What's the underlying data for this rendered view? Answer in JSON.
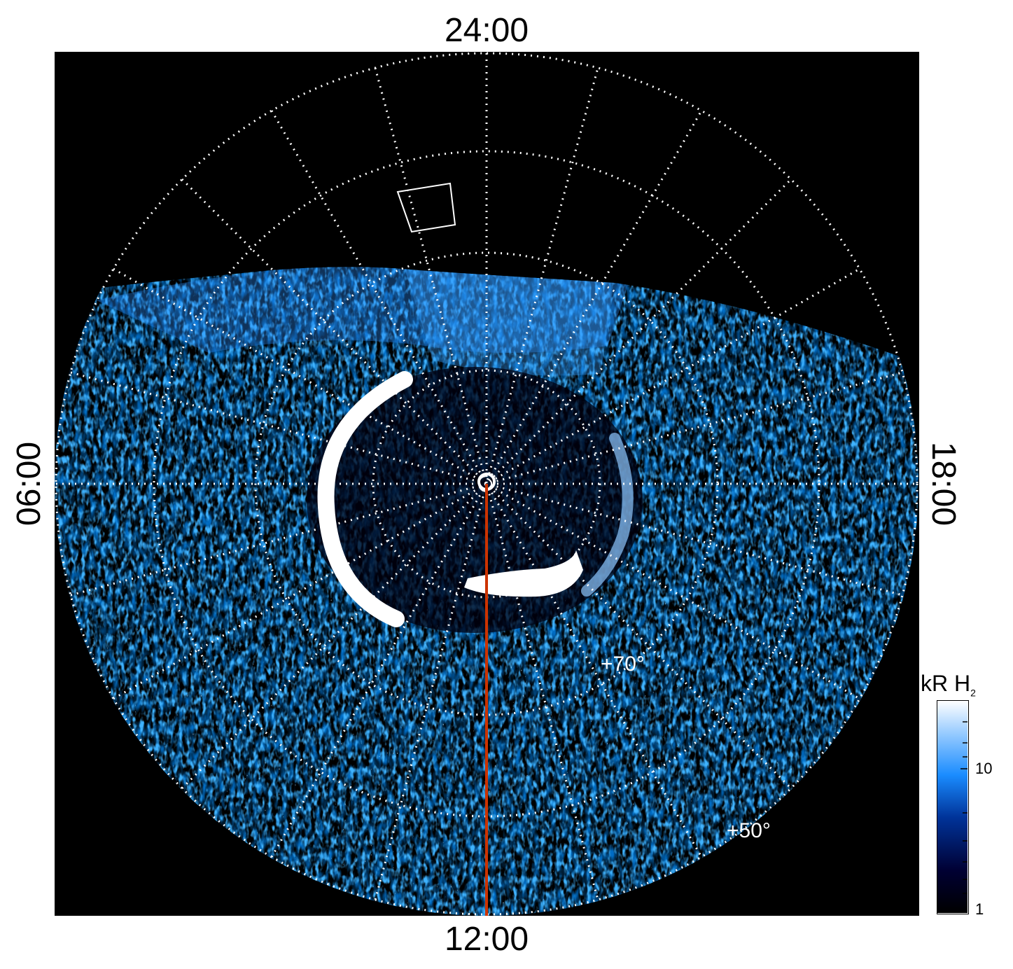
{
  "local_time_labels": {
    "top": "24:00",
    "bottom": "12:00",
    "left": "06:00",
    "right": "18:00"
  },
  "latitude_labels": [
    "+70°",
    "+50°"
  ],
  "colorbar": {
    "title": "kR H",
    "title_subscript": "2",
    "scale": "log",
    "range": [
      1,
      30
    ],
    "ticks": [
      "10",
      "1"
    ],
    "colors": [
      "#000000",
      "#000033",
      "#003399",
      "#1a8cff",
      "#99ccff",
      "#ffffff"
    ]
  },
  "colors": {
    "background": "#000000",
    "grid": "#ffffff",
    "meridian_line": "#cc3300",
    "aurora": "#ffffff"
  }
}
